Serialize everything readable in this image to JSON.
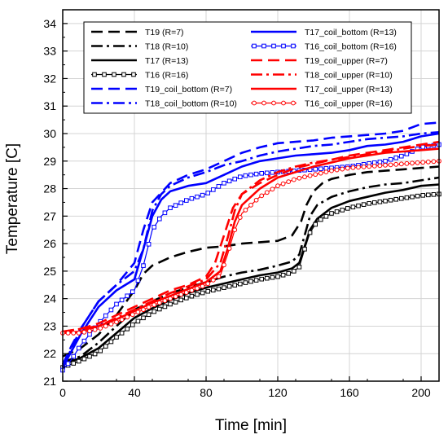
{
  "chart_data": {
    "type": "line",
    "xlabel": "Time [min]",
    "ylabel": "Temperature [C]",
    "xlim": [
      0,
      210
    ],
    "ylim": [
      21,
      34.5
    ],
    "xticks": [
      0,
      40,
      80,
      120,
      160,
      200
    ],
    "yticks": [
      21,
      22,
      23,
      24,
      25,
      26,
      27,
      28,
      29,
      30,
      31,
      32,
      33,
      34
    ],
    "grid": true,
    "legend_position": "top-center",
    "series": [
      {
        "name": "T19 (R=7)",
        "color": "#000000",
        "dash": "dash",
        "marker": "none",
        "points": [
          [
            0,
            21.9
          ],
          [
            10,
            22.2
          ],
          [
            20,
            22.7
          ],
          [
            30,
            23.4
          ],
          [
            40,
            24.3
          ],
          [
            45,
            24.9
          ],
          [
            50,
            25.2
          ],
          [
            60,
            25.5
          ],
          [
            70,
            25.7
          ],
          [
            80,
            25.85
          ],
          [
            90,
            25.9
          ],
          [
            100,
            26.0
          ],
          [
            110,
            26.05
          ],
          [
            120,
            26.1
          ],
          [
            128,
            26.3
          ],
          [
            133,
            26.8
          ],
          [
            136,
            27.4
          ],
          [
            140,
            27.9
          ],
          [
            145,
            28.2
          ],
          [
            150,
            28.35
          ],
          [
            160,
            28.5
          ],
          [
            170,
            28.6
          ],
          [
            180,
            28.65
          ],
          [
            190,
            28.7
          ],
          [
            200,
            28.75
          ],
          [
            210,
            28.8
          ]
        ]
      },
      {
        "name": "T18 (R=10)",
        "color": "#000000",
        "dash": "dashdot",
        "marker": "none",
        "points": [
          [
            0,
            21.7
          ],
          [
            10,
            21.9
          ],
          [
            20,
            22.4
          ],
          [
            30,
            23.0
          ],
          [
            40,
            23.6
          ],
          [
            50,
            23.9
          ],
          [
            60,
            24.2
          ],
          [
            70,
            24.4
          ],
          [
            80,
            24.6
          ],
          [
            90,
            24.8
          ],
          [
            100,
            24.95
          ],
          [
            110,
            25.05
          ],
          [
            120,
            25.2
          ],
          [
            128,
            25.35
          ],
          [
            132,
            25.6
          ],
          [
            135,
            26.3
          ],
          [
            138,
            27.0
          ],
          [
            142,
            27.4
          ],
          [
            150,
            27.7
          ],
          [
            160,
            27.9
          ],
          [
            170,
            28.05
          ],
          [
            180,
            28.15
          ],
          [
            190,
            28.2
          ],
          [
            200,
            28.3
          ],
          [
            210,
            28.4
          ]
        ]
      },
      {
        "name": "T17 (R=13)",
        "color": "#000000",
        "dash": "solid",
        "marker": "none",
        "points": [
          [
            0,
            21.6
          ],
          [
            10,
            21.85
          ],
          [
            20,
            22.2
          ],
          [
            30,
            22.75
          ],
          [
            40,
            23.3
          ],
          [
            50,
            23.65
          ],
          [
            60,
            23.95
          ],
          [
            70,
            24.2
          ],
          [
            80,
            24.4
          ],
          [
            90,
            24.55
          ],
          [
            100,
            24.7
          ],
          [
            110,
            24.85
          ],
          [
            120,
            24.95
          ],
          [
            128,
            25.1
          ],
          [
            132,
            25.3
          ],
          [
            135,
            25.9
          ],
          [
            138,
            26.5
          ],
          [
            142,
            26.9
          ],
          [
            150,
            27.3
          ],
          [
            160,
            27.55
          ],
          [
            170,
            27.7
          ],
          [
            180,
            27.85
          ],
          [
            190,
            27.95
          ],
          [
            200,
            28.1
          ],
          [
            210,
            28.15
          ]
        ]
      },
      {
        "name": "T16 (R=16)",
        "color": "#000000",
        "dash": "solid",
        "marker": "square",
        "points": [
          [
            0,
            21.5
          ],
          [
            10,
            21.75
          ],
          [
            20,
            22.05
          ],
          [
            30,
            22.6
          ],
          [
            40,
            23.1
          ],
          [
            50,
            23.5
          ],
          [
            60,
            23.8
          ],
          [
            70,
            24.05
          ],
          [
            80,
            24.25
          ],
          [
            90,
            24.4
          ],
          [
            100,
            24.55
          ],
          [
            110,
            24.7
          ],
          [
            120,
            24.8
          ],
          [
            128,
            24.95
          ],
          [
            132,
            25.15
          ],
          [
            135,
            25.8
          ],
          [
            138,
            26.4
          ],
          [
            142,
            26.8
          ],
          [
            150,
            27.1
          ],
          [
            160,
            27.3
          ],
          [
            170,
            27.45
          ],
          [
            180,
            27.55
          ],
          [
            190,
            27.65
          ],
          [
            200,
            27.75
          ],
          [
            210,
            27.8
          ]
        ]
      },
      {
        "name": "T19_coil_bottom (R=7)",
        "color": "#0000ff",
        "dash": "dash",
        "marker": "none",
        "points": [
          [
            0,
            21.6
          ],
          [
            5,
            22.3
          ],
          [
            10,
            22.9
          ],
          [
            20,
            23.9
          ],
          [
            30,
            24.5
          ],
          [
            35,
            24.9
          ],
          [
            40,
            25.3
          ],
          [
            45,
            26.5
          ],
          [
            50,
            27.5
          ],
          [
            60,
            28.2
          ],
          [
            70,
            28.5
          ],
          [
            80,
            28.7
          ],
          [
            90,
            29.0
          ],
          [
            100,
            29.3
          ],
          [
            110,
            29.5
          ],
          [
            120,
            29.65
          ],
          [
            130,
            29.7
          ],
          [
            140,
            29.75
          ],
          [
            150,
            29.85
          ],
          [
            160,
            29.9
          ],
          [
            170,
            29.95
          ],
          [
            180,
            30.0
          ],
          [
            190,
            30.1
          ],
          [
            200,
            30.35
          ],
          [
            210,
            30.4
          ]
        ]
      },
      {
        "name": "T18_coil_bottom (R=10)",
        "color": "#0000ff",
        "dash": "dashdot",
        "marker": "none",
        "points": [
          [
            0,
            21.5
          ],
          [
            5,
            22.2
          ],
          [
            10,
            22.9
          ],
          [
            20,
            23.9
          ],
          [
            30,
            24.5
          ],
          [
            40,
            25.0
          ],
          [
            45,
            25.8
          ],
          [
            50,
            27.2
          ],
          [
            55,
            27.8
          ],
          [
            60,
            28.1
          ],
          [
            70,
            28.4
          ],
          [
            80,
            28.6
          ],
          [
            90,
            28.85
          ],
          [
            100,
            29.0
          ],
          [
            110,
            29.2
          ],
          [
            120,
            29.35
          ],
          [
            130,
            29.45
          ],
          [
            140,
            29.55
          ],
          [
            150,
            29.6
          ],
          [
            160,
            29.7
          ],
          [
            170,
            29.8
          ],
          [
            180,
            29.85
          ],
          [
            190,
            29.9
          ],
          [
            200,
            30.0
          ],
          [
            210,
            30.05
          ]
        ]
      },
      {
        "name": "T17_coil_bottom (R=13)",
        "color": "#0000ff",
        "dash": "solid",
        "marker": "none",
        "points": [
          [
            0,
            21.5
          ],
          [
            5,
            22.1
          ],
          [
            10,
            22.7
          ],
          [
            20,
            23.7
          ],
          [
            30,
            24.3
          ],
          [
            40,
            24.7
          ],
          [
            45,
            25.8
          ],
          [
            50,
            27.0
          ],
          [
            55,
            27.6
          ],
          [
            60,
            27.9
          ],
          [
            70,
            28.1
          ],
          [
            80,
            28.2
          ],
          [
            90,
            28.5
          ],
          [
            100,
            28.8
          ],
          [
            110,
            29.0
          ],
          [
            120,
            29.1
          ],
          [
            130,
            29.2
          ],
          [
            140,
            29.25
          ],
          [
            150,
            29.3
          ],
          [
            160,
            29.4
          ],
          [
            170,
            29.55
          ],
          [
            180,
            29.6
          ],
          [
            190,
            29.7
          ],
          [
            200,
            29.9
          ],
          [
            210,
            30.0
          ]
        ]
      },
      {
        "name": "T16_coil_bottom (R=16)",
        "color": "#0000ff",
        "dash": "solid",
        "marker": "square",
        "points": [
          [
            0,
            21.4
          ],
          [
            5,
            21.8
          ],
          [
            10,
            22.3
          ],
          [
            20,
            23.1
          ],
          [
            30,
            23.8
          ],
          [
            40,
            24.3
          ],
          [
            45,
            25.2
          ],
          [
            50,
            26.5
          ],
          [
            55,
            27.0
          ],
          [
            60,
            27.3
          ],
          [
            70,
            27.6
          ],
          [
            80,
            27.8
          ],
          [
            90,
            28.2
          ],
          [
            100,
            28.45
          ],
          [
            110,
            28.55
          ],
          [
            120,
            28.6
          ],
          [
            130,
            28.65
          ],
          [
            140,
            28.7
          ],
          [
            150,
            28.75
          ],
          [
            160,
            28.8
          ],
          [
            170,
            28.9
          ],
          [
            180,
            29.0
          ],
          [
            190,
            29.2
          ],
          [
            200,
            29.5
          ],
          [
            210,
            29.6
          ]
        ]
      },
      {
        "name": "T19_coil_upper (R=7)",
        "color": "#ff0000",
        "dash": "dash",
        "marker": "none",
        "points": [
          [
            0,
            22.8
          ],
          [
            10,
            22.9
          ],
          [
            20,
            23.1
          ],
          [
            30,
            23.4
          ],
          [
            40,
            23.7
          ],
          [
            50,
            24.0
          ],
          [
            60,
            24.3
          ],
          [
            70,
            24.5
          ],
          [
            80,
            24.8
          ],
          [
            85,
            25.3
          ],
          [
            90,
            26.3
          ],
          [
            95,
            27.3
          ],
          [
            100,
            27.8
          ],
          [
            110,
            28.2
          ],
          [
            120,
            28.5
          ],
          [
            130,
            28.75
          ],
          [
            140,
            28.9
          ],
          [
            150,
            29.05
          ],
          [
            160,
            29.2
          ],
          [
            170,
            29.3
          ],
          [
            180,
            29.4
          ],
          [
            190,
            29.5
          ],
          [
            200,
            29.6
          ],
          [
            210,
            29.7
          ]
        ]
      },
      {
        "name": "T18_coil_upper (R=10)",
        "color": "#ff0000",
        "dash": "dashdot",
        "marker": "none",
        "points": [
          [
            0,
            22.8
          ],
          [
            10,
            22.9
          ],
          [
            20,
            23.0
          ],
          [
            30,
            23.3
          ],
          [
            40,
            23.6
          ],
          [
            50,
            23.9
          ],
          [
            60,
            24.2
          ],
          [
            70,
            24.45
          ],
          [
            80,
            24.7
          ],
          [
            88,
            25.3
          ],
          [
            92,
            26.2
          ],
          [
            96,
            27.2
          ],
          [
            100,
            27.8
          ],
          [
            110,
            28.3
          ],
          [
            120,
            28.6
          ],
          [
            130,
            28.8
          ],
          [
            140,
            28.95
          ],
          [
            150,
            29.05
          ],
          [
            160,
            29.15
          ],
          [
            170,
            29.25
          ],
          [
            180,
            29.35
          ],
          [
            190,
            29.45
          ],
          [
            200,
            29.55
          ],
          [
            210,
            29.6
          ]
        ]
      },
      {
        "name": "T17_coil_upper (R=13)",
        "color": "#ff0000",
        "dash": "solid",
        "marker": "none",
        "points": [
          [
            0,
            22.75
          ],
          [
            10,
            22.8
          ],
          [
            20,
            23.0
          ],
          [
            30,
            23.25
          ],
          [
            40,
            23.55
          ],
          [
            50,
            23.85
          ],
          [
            60,
            24.1
          ],
          [
            70,
            24.35
          ],
          [
            80,
            24.6
          ],
          [
            88,
            25.0
          ],
          [
            92,
            25.8
          ],
          [
            96,
            26.8
          ],
          [
            100,
            27.4
          ],
          [
            110,
            28.0
          ],
          [
            120,
            28.4
          ],
          [
            130,
            28.6
          ],
          [
            140,
            28.8
          ],
          [
            150,
            28.95
          ],
          [
            160,
            29.1
          ],
          [
            170,
            29.2
          ],
          [
            180,
            29.3
          ],
          [
            190,
            29.35
          ],
          [
            200,
            29.4
          ],
          [
            210,
            29.45
          ]
        ]
      },
      {
        "name": "T16_coil_upper (R=16)",
        "color": "#ff0000",
        "dash": "solid",
        "marker": "circle",
        "points": [
          [
            0,
            22.75
          ],
          [
            10,
            22.75
          ],
          [
            20,
            22.9
          ],
          [
            30,
            23.15
          ],
          [
            40,
            23.45
          ],
          [
            50,
            23.75
          ],
          [
            60,
            24.0
          ],
          [
            70,
            24.25
          ],
          [
            80,
            24.5
          ],
          [
            88,
            24.85
          ],
          [
            92,
            25.6
          ],
          [
            96,
            26.5
          ],
          [
            100,
            27.1
          ],
          [
            110,
            27.7
          ],
          [
            120,
            28.1
          ],
          [
            130,
            28.35
          ],
          [
            140,
            28.5
          ],
          [
            150,
            28.65
          ],
          [
            160,
            28.75
          ],
          [
            170,
            28.8
          ],
          [
            180,
            28.85
          ],
          [
            190,
            28.9
          ],
          [
            200,
            28.95
          ],
          [
            210,
            29.0
          ]
        ]
      }
    ]
  }
}
